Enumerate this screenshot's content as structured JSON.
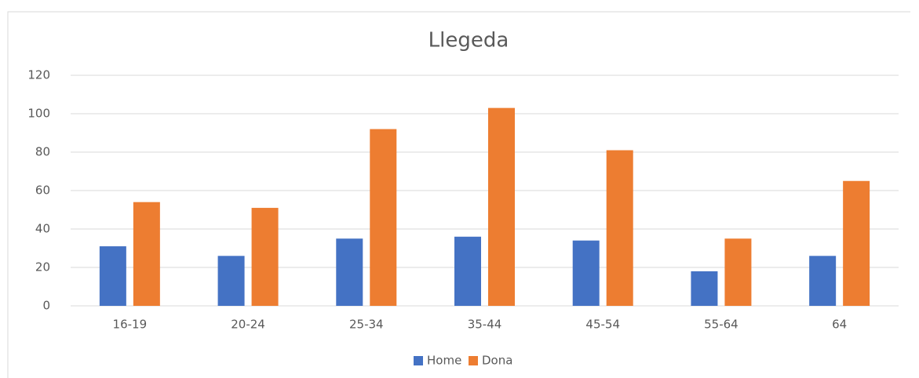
{
  "chart_data": {
    "type": "bar",
    "title": "Llegeda",
    "categories": [
      "16-19",
      "20-24",
      "25-34",
      "35-44",
      "45-54",
      "55-64",
      "64"
    ],
    "series": [
      {
        "name": "Home",
        "color": "#4472c4",
        "values": [
          31,
          26,
          35,
          36,
          34,
          18,
          26
        ]
      },
      {
        "name": "Dona",
        "color": "#ed7d31",
        "values": [
          54,
          51,
          92,
          103,
          81,
          35,
          65
        ]
      }
    ],
    "ylim": [
      0,
      120
    ],
    "yticks": [
      0,
      20,
      40,
      60,
      80,
      100,
      120
    ],
    "grid": true,
    "legend": "bottom"
  }
}
